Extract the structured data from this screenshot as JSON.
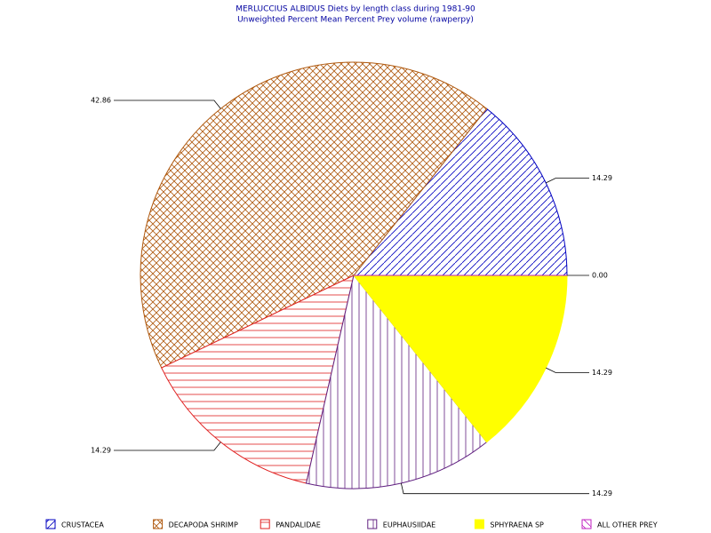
{
  "chart_data": {
    "type": "pie",
    "title": "MERLUCCIUS ALBIDUS Diets by length class during 1981-90",
    "subtitle": "Unweighted Percent Mean Percent Prey  volume (rawperpy)",
    "categories": [
      "CRUSTACEA",
      "DECAPODA SHRIMP",
      "PANDALIDAE",
      "EUPHAUSIIDAE",
      "SPHYRAENA SP",
      "ALL OTHER PREY"
    ],
    "values": [
      14.29,
      42.86,
      14.29,
      14.29,
      14.29,
      0.0
    ],
    "value_labels": [
      "14.29",
      "42.86",
      "14.29",
      "14.29",
      "14.29",
      "0.00"
    ],
    "colors": [
      "#0000c0",
      "#b05a10",
      "#e02020",
      "#602080",
      "#ffff00",
      "#c020c0"
    ],
    "hatch": [
      "diag-up",
      "cross",
      "horizontal",
      "vertical",
      "solid",
      "diag-down"
    ]
  }
}
